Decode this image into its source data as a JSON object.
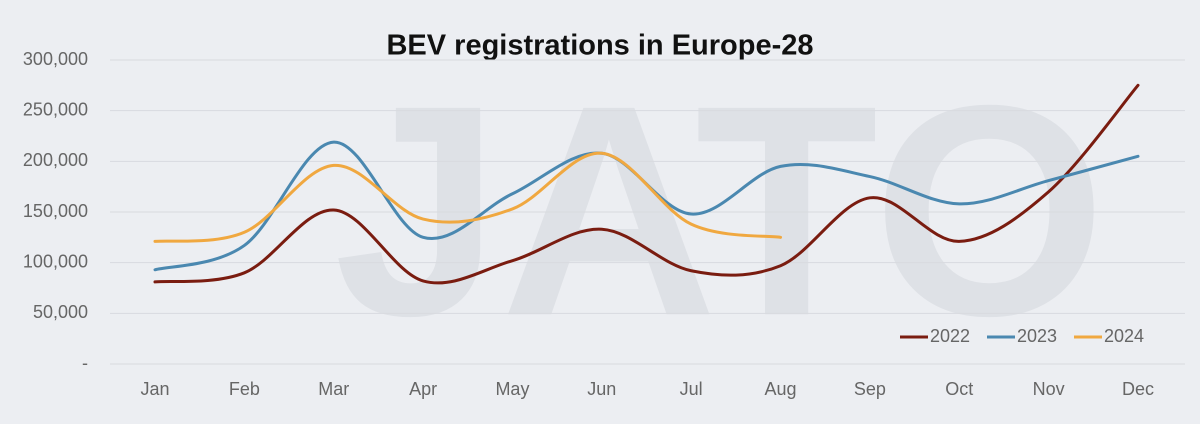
{
  "chart_data": {
    "type": "line",
    "title": "BEV registrations in Europe-28",
    "watermark": "JATO",
    "categories": [
      "Jan",
      "Feb",
      "Mar",
      "Apr",
      "May",
      "Jun",
      "Jul",
      "Aug",
      "Sep",
      "Oct",
      "Nov",
      "Dec"
    ],
    "series": [
      {
        "name": "2022",
        "color": "#7a1c10",
        "values": [
          81000,
          90000,
          152000,
          82000,
          102000,
          133000,
          92000,
          97000,
          164000,
          121000,
          170000,
          275000
        ]
      },
      {
        "name": "2023",
        "color": "#4a88b0",
        "values": [
          93000,
          117000,
          219000,
          125000,
          168000,
          208000,
          148000,
          195000,
          185000,
          158000,
          181000,
          205000
        ]
      },
      {
        "name": "2024",
        "color": "#f0a840",
        "values": [
          121000,
          130000,
          196000,
          143000,
          153000,
          208000,
          138000,
          125000,
          null,
          null,
          null,
          null
        ]
      }
    ],
    "ylim": [
      0,
      300000
    ],
    "yticks": [
      {
        "value": 0,
        "label": "-"
      },
      {
        "value": 50000,
        "label": "50,000"
      },
      {
        "value": 100000,
        "label": "100,000"
      },
      {
        "value": 150000,
        "label": "150,000"
      },
      {
        "value": 200000,
        "label": "200,000"
      },
      {
        "value": 250000,
        "label": "250,000"
      },
      {
        "value": 300000,
        "label": "300,000"
      }
    ],
    "grid": true,
    "legend": "lower right"
  }
}
